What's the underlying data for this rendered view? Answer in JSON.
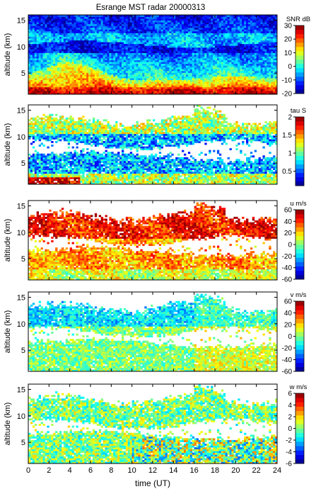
{
  "title": "Esrange MST radar 20000313",
  "xlabel": "time (UT)",
  "x_ticks": [
    "0",
    "2",
    "4",
    "6",
    "8",
    "10",
    "12",
    "14",
    "16",
    "18",
    "20",
    "22",
    "24"
  ],
  "chart_data": [
    {
      "type": "heatmap",
      "title": "Esrange MST radar 20000313",
      "ylabel": "altitude (km)",
      "xlim": [
        0,
        24
      ],
      "ylim": [
        1,
        16
      ],
      "y_ticks": [
        "5",
        "10",
        "15"
      ],
      "colorbar": {
        "label": "SNR dB",
        "range": [
          -20,
          30
        ],
        "ticks": [
          "30",
          "20",
          "10",
          "0",
          "-10",
          "-20"
        ]
      },
      "description_values": {
        "low_altitude_high_snr_km": [
          1,
          3
        ],
        "tropopause_boundary_km": [
          4,
          8
        ]
      }
    },
    {
      "type": "heatmap",
      "ylabel": "altitude (km)",
      "xlim": [
        0,
        24
      ],
      "ylim": [
        1,
        16
      ],
      "y_ticks": [
        "5",
        "10",
        "15"
      ],
      "colorbar": {
        "label": "tau S",
        "range": [
          0.1,
          2
        ],
        "ticks": [
          "2",
          "1.5",
          "1",
          "0.5"
        ]
      }
    },
    {
      "type": "heatmap",
      "ylabel": "altitude (km)",
      "xlim": [
        0,
        24
      ],
      "ylim": [
        1,
        16
      ],
      "y_ticks": [
        "5",
        "10",
        "15"
      ],
      "colorbar": {
        "label": "u m/s",
        "range": [
          -60,
          60
        ],
        "ticks": [
          "60",
          "40",
          "20",
          "0",
          "-20",
          "-40",
          "-60"
        ]
      }
    },
    {
      "type": "heatmap",
      "ylabel": "altitude (km)",
      "xlim": [
        0,
        24
      ],
      "ylim": [
        1,
        16
      ],
      "y_ticks": [
        "5",
        "10",
        "15"
      ],
      "colorbar": {
        "label": "v m/s",
        "range": [
          -60,
          60
        ],
        "ticks": [
          "60",
          "40",
          "20",
          "0",
          "-20",
          "-40",
          "-60"
        ]
      }
    },
    {
      "type": "heatmap",
      "ylabel": "altitude (km)",
      "xlim": [
        0,
        24
      ],
      "ylim": [
        1,
        16
      ],
      "y_ticks": [
        "5",
        "10",
        "15"
      ],
      "colorbar": {
        "label": "w m/s",
        "range": [
          -6,
          6
        ],
        "ticks": [
          "6",
          "4",
          "2",
          "0",
          "-2",
          "-4",
          "-6"
        ]
      }
    }
  ]
}
